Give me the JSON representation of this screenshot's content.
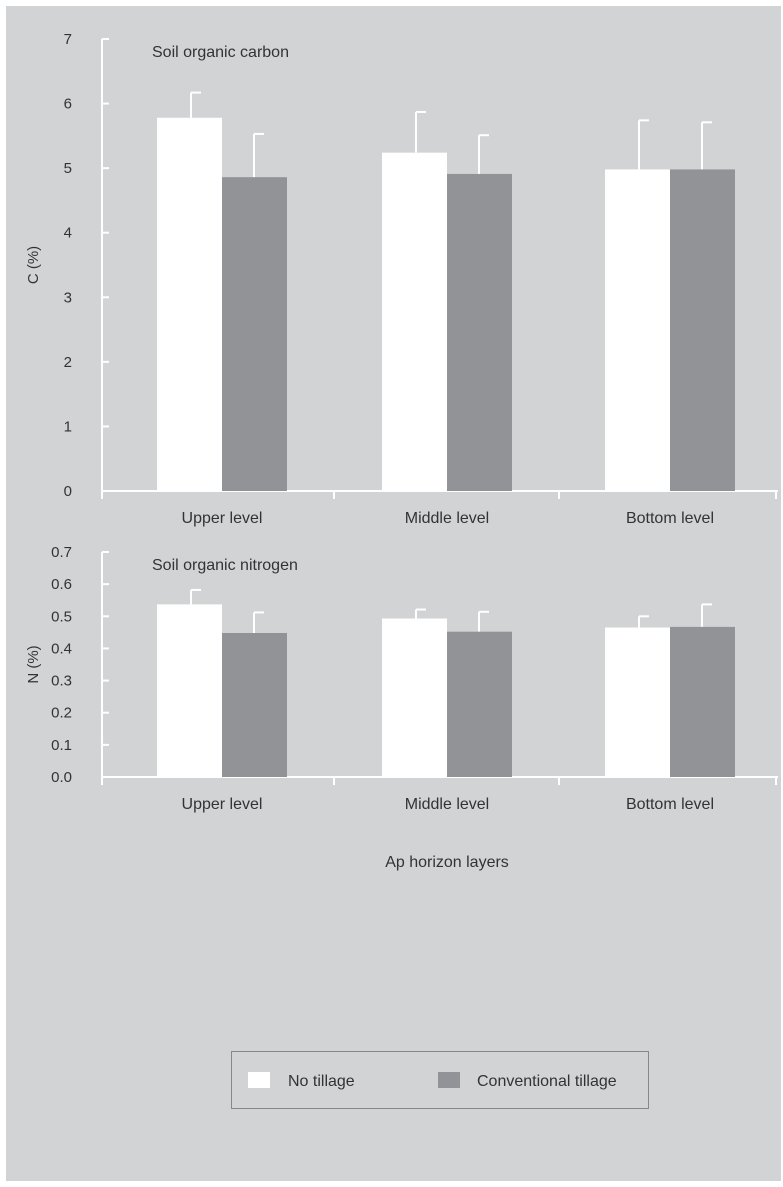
{
  "chart_data": [
    {
      "type": "bar",
      "title": "Soil organic carbon",
      "ylabel": "C (%)",
      "xlabel": "",
      "ylim": [
        0,
        7
      ],
      "yticks": [
        "0",
        "1",
        "2",
        "3",
        "4",
        "5",
        "6",
        "7"
      ],
      "categories": [
        "Upper level",
        "Middle level",
        "Bottom level"
      ],
      "series": [
        {
          "name": "No tillage",
          "values": [
            5.78,
            5.24,
            4.98
          ],
          "error": [
            0.39,
            0.63,
            0.76
          ]
        },
        {
          "name": "Conventional tillage",
          "values": [
            4.86,
            4.91,
            4.98
          ],
          "error": [
            0.67,
            0.6,
            0.73
          ]
        }
      ],
      "grid": false
    },
    {
      "type": "bar",
      "title": "Soil organic nitrogen",
      "ylabel": "N (%)",
      "xlabel": "Ap horizon layers",
      "ylim": [
        0,
        0.7
      ],
      "yticks": [
        "0.0",
        "0.1",
        "0.2",
        "0.3",
        "0.4",
        "0.5",
        "0.6",
        "0.7"
      ],
      "categories": [
        "Upper level",
        "Middle level",
        "Bottom level"
      ],
      "series": [
        {
          "name": "No tillage",
          "values": [
            0.537,
            0.493,
            0.465
          ],
          "error": [
            0.045,
            0.028,
            0.035
          ]
        },
        {
          "name": "Conventional tillage",
          "values": [
            0.448,
            0.452,
            0.467
          ],
          "error": [
            0.064,
            0.062,
            0.07
          ]
        }
      ],
      "grid": false
    }
  ],
  "legend": {
    "placement": "bottom-center",
    "items": [
      {
        "label": "No tillage",
        "color": "#ffffff"
      },
      {
        "label": "Conventional tillage",
        "color": "#929396"
      }
    ]
  },
  "colors": {
    "background": "#d2d3d5",
    "no_tillage": "#ffffff",
    "conventional_tillage": "#929396",
    "axis": "#ffffff",
    "error_bar": "#ffffff"
  }
}
